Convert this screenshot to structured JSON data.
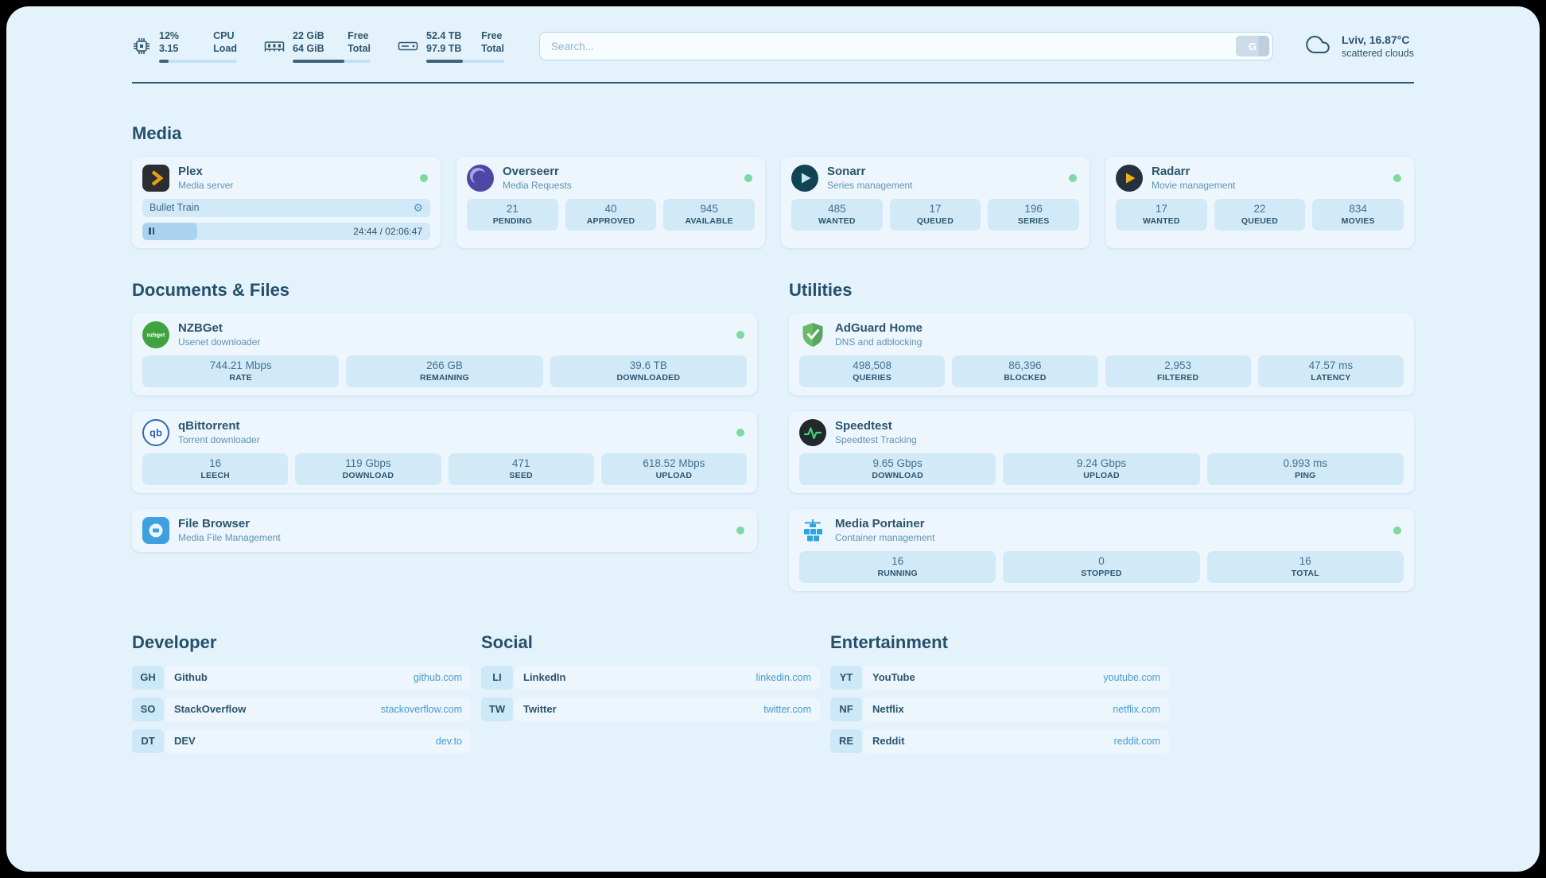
{
  "colors": {
    "accent": "#4a9ad2",
    "status_online": "#7ed9a2",
    "background": "#e4f2fb"
  },
  "icons": {
    "search_button": "G",
    "gear": "⚙"
  },
  "header": {
    "widgets": [
      {
        "name": "cpu",
        "values": [
          "12%",
          "3.15"
        ],
        "labels": [
          "CPU",
          "Load"
        ],
        "progress": 12
      },
      {
        "name": "memory",
        "values": [
          "22 GiB",
          "64 GiB"
        ],
        "labels": [
          "Free",
          "Total"
        ],
        "progress": 66
      },
      {
        "name": "disk",
        "values": [
          "52.4 TB",
          "97.9 TB"
        ],
        "labels": [
          "Free",
          "Total"
        ],
        "progress": 47
      }
    ],
    "search": {
      "placeholder": "Search..."
    },
    "weather": {
      "location": "Lviv, 16.87°C",
      "condition": "scattered clouds"
    }
  },
  "services": {
    "media": {
      "heading": "Media",
      "plex": {
        "name": "Plex",
        "description": "Media server",
        "now_playing": "Bullet Train",
        "progress_time": "24:44 / 02:06:47",
        "progress_percent": 19
      },
      "overseerr": {
        "name": "Overseerr",
        "description": "Media Requests",
        "stats": [
          {
            "value": "21",
            "label": "PENDING"
          },
          {
            "value": "40",
            "label": "APPROVED"
          },
          {
            "value": "945",
            "label": "AVAILABLE"
          }
        ]
      },
      "sonarr": {
        "name": "Sonarr",
        "description": "Series management",
        "stats": [
          {
            "value": "485",
            "label": "WANTED"
          },
          {
            "value": "17",
            "label": "QUEUED"
          },
          {
            "value": "196",
            "label": "SERIES"
          }
        ]
      },
      "radarr": {
        "name": "Radarr",
        "description": "Movie management",
        "stats": [
          {
            "value": "17",
            "label": "WANTED"
          },
          {
            "value": "22",
            "label": "QUEUED"
          },
          {
            "value": "834",
            "label": "MOVIES"
          }
        ]
      }
    },
    "documents": {
      "heading": "Documents & Files",
      "nzbget": {
        "name": "NZBGet",
        "description": "Usenet downloader",
        "stats": [
          {
            "value": "744.21 Mbps",
            "label": "RATE"
          },
          {
            "value": "266 GB",
            "label": "REMAINING"
          },
          {
            "value": "39.6 TB",
            "label": "DOWNLOADED"
          }
        ]
      },
      "qbittorrent": {
        "name": "qBittorrent",
        "description": "Torrent downloader",
        "stats": [
          {
            "value": "16",
            "label": "LEECH"
          },
          {
            "value": "119 Gbps",
            "label": "DOWNLOAD"
          },
          {
            "value": "471",
            "label": "SEED"
          },
          {
            "value": "618.52 Mbps",
            "label": "UPLOAD"
          }
        ]
      },
      "filebrowser": {
        "name": "File Browser",
        "description": "Media File Management"
      }
    },
    "utilities": {
      "heading": "Utilities",
      "adguard": {
        "name": "AdGuard Home",
        "description": "DNS and adblocking",
        "stats": [
          {
            "value": "498,508",
            "label": "QUERIES"
          },
          {
            "value": "86,396",
            "label": "BLOCKED"
          },
          {
            "value": "2,953",
            "label": "FILTERED"
          },
          {
            "value": "47.57 ms",
            "label": "LATENCY"
          }
        ]
      },
      "speedtest": {
        "name": "Speedtest",
        "description": "Speedtest Tracking",
        "stats": [
          {
            "value": "9.65 Gbps",
            "label": "DOWNLOAD"
          },
          {
            "value": "9.24 Gbps",
            "label": "UPLOAD"
          },
          {
            "value": "0.993 ms",
            "label": "PING"
          }
        ]
      },
      "portainer": {
        "name": "Media Portainer",
        "description": "Container management",
        "stats": [
          {
            "value": "16",
            "label": "RUNNING"
          },
          {
            "value": "0",
            "label": "STOPPED"
          },
          {
            "value": "16",
            "label": "TOTAL"
          }
        ]
      }
    }
  },
  "bookmarks": {
    "developer": {
      "heading": "Developer",
      "items": [
        {
          "abbr": "GH",
          "name": "Github",
          "url": "github.com"
        },
        {
          "abbr": "SO",
          "name": "StackOverflow",
          "url": "stackoverflow.com"
        },
        {
          "abbr": "DT",
          "name": "DEV",
          "url": "dev.to"
        }
      ]
    },
    "social": {
      "heading": "Social",
      "items": [
        {
          "abbr": "LI",
          "name": "LinkedIn",
          "url": "linkedin.com"
        },
        {
          "abbr": "TW",
          "name": "Twitter",
          "url": "twitter.com"
        }
      ]
    },
    "entertainment": {
      "heading": "Entertainment",
      "items": [
        {
          "abbr": "YT",
          "name": "YouTube",
          "url": "youtube.com"
        },
        {
          "abbr": "NF",
          "name": "Netflix",
          "url": "netflix.com"
        },
        {
          "abbr": "RE",
          "name": "Reddit",
          "url": "reddit.com"
        }
      ]
    }
  }
}
